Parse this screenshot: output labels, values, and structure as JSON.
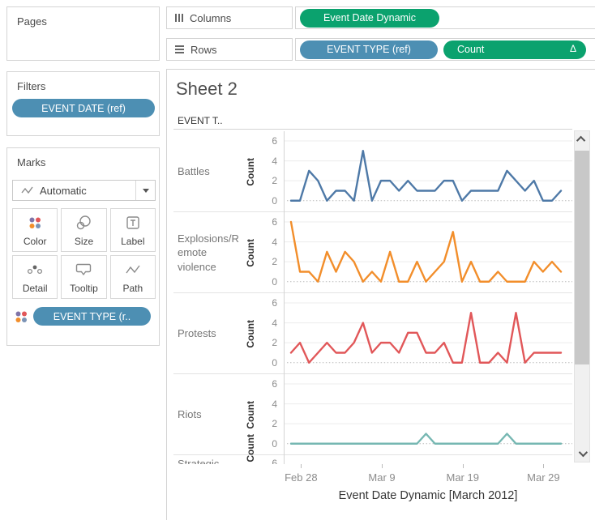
{
  "pages_panel": {
    "label": "Pages"
  },
  "filters_panel": {
    "label": "Filters",
    "pill": "EVENT DATE (ref)"
  },
  "marks_panel": {
    "label": "Marks",
    "mark_type_selector": "Automatic",
    "buttons": [
      {
        "label": "Color"
      },
      {
        "label": "Size"
      },
      {
        "label": "Label"
      },
      {
        "label": "Detail"
      },
      {
        "label": "Tooltip"
      },
      {
        "label": "Path"
      }
    ],
    "pill": "EVENT TYPE (r.."
  },
  "shelves": {
    "columns": {
      "label": "Columns",
      "pills": [
        {
          "text": "Event Date Dynamic",
          "color": "green"
        }
      ]
    },
    "rows": {
      "label": "Rows",
      "pills": [
        {
          "text": "EVENT TYPE (ref)",
          "color": "blue"
        },
        {
          "text": "Count",
          "color": "green",
          "badge": "Δ"
        }
      ]
    }
  },
  "sheet": {
    "title": "Sheet 2",
    "row_field_header": "EVENT T..",
    "partial_row_label": "Strategic"
  },
  "colors": {
    "pill_green": "#0ba26e",
    "pill_blue": "#4d8fb3",
    "battles": "#4e79a7",
    "explosions": "#f28e2b",
    "protests": "#e15759",
    "riots": "#76b7b2"
  },
  "chart_data": {
    "type": "line",
    "small_multiples": true,
    "title": "Sheet 2",
    "xlabel": "Event Date Dynamic [March 2012]",
    "ylabel": "Count",
    "x_ticks": [
      "Feb 28",
      "Mar 9",
      "Mar 19",
      "Mar 29"
    ],
    "y_ticks": [
      6,
      4,
      2,
      0
    ],
    "ylim": [
      0,
      6
    ],
    "grid": "horizontal lines at 2,4,6; dotted zero line",
    "x_note": "daily counts, one point per day from late Feb to late Mar 2012",
    "series": [
      {
        "name": "Battles",
        "color": "#4e79a7",
        "values": [
          0,
          0,
          3,
          2,
          0,
          1,
          1,
          0,
          5,
          0,
          2,
          2,
          1,
          2,
          1,
          1,
          1,
          2,
          2,
          0,
          1,
          1,
          1,
          1,
          3,
          2,
          1,
          2,
          0,
          0,
          1
        ]
      },
      {
        "name": "Explosions/Remote violence",
        "color": "#f28e2b",
        "values": [
          6,
          1,
          1,
          0,
          3,
          1,
          3,
          2,
          0,
          1,
          0,
          3,
          0,
          0,
          2,
          0,
          1,
          2,
          5,
          0,
          2,
          0,
          0,
          1,
          0,
          0,
          0,
          2,
          1,
          2,
          1
        ]
      },
      {
        "name": "Protests",
        "color": "#e15759",
        "values": [
          1,
          2,
          0,
          1,
          2,
          1,
          1,
          2,
          4,
          1,
          2,
          2,
          1,
          3,
          3,
          1,
          1,
          2,
          0,
          0,
          5,
          0,
          0,
          1,
          0,
          5,
          0,
          1,
          1,
          1,
          1
        ]
      },
      {
        "name": "Riots",
        "color": "#76b7b2",
        "values": [
          0,
          0,
          0,
          0,
          0,
          0,
          0,
          0,
          0,
          0,
          0,
          0,
          0,
          0,
          0,
          1,
          0,
          0,
          0,
          0,
          0,
          0,
          0,
          0,
          1,
          0,
          0,
          0,
          0,
          0,
          0
        ]
      },
      {
        "name": "Strategic",
        "color": null,
        "values": []
      }
    ]
  }
}
